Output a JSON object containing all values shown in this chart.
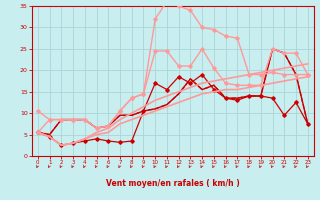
{
  "background_color": "#c8eef0",
  "grid_color": "#aad4d6",
  "xlabel": "Vent moyen/en rafales ( km/h )",
  "xlabel_color": "#cc0000",
  "tick_color": "#cc0000",
  "xlim": [
    -0.5,
    23.5
  ],
  "ylim": [
    0,
    35
  ],
  "yticks": [
    0,
    5,
    10,
    15,
    20,
    25,
    30,
    35
  ],
  "xticks": [
    0,
    1,
    2,
    3,
    4,
    5,
    6,
    7,
    8,
    9,
    10,
    11,
    12,
    13,
    14,
    15,
    16,
    17,
    18,
    19,
    20,
    21,
    22,
    23
  ],
  "series": [
    {
      "x": [
        0,
        1,
        2,
        3,
        4,
        5,
        6,
        7,
        8,
        9,
        10,
        11,
        12,
        13,
        14,
        15,
        16,
        17,
        18,
        19,
        20,
        21,
        22,
        23
      ],
      "y": [
        5.5,
        4.5,
        2.5,
        3.0,
        3.5,
        4.0,
        3.5,
        3.2,
        3.5,
        10.5,
        17.0,
        15.5,
        18.5,
        17.0,
        19.0,
        15.5,
        13.5,
        13.0,
        14.0,
        14.0,
        13.5,
        9.5,
        12.5,
        7.5
      ],
      "color": "#cc0000",
      "lw": 0.9,
      "marker": "D",
      "ms": 1.8,
      "alpha": 1.0,
      "dashed": false
    },
    {
      "x": [
        0,
        1,
        2,
        3,
        4,
        5,
        6,
        7,
        8,
        9,
        10,
        11,
        12,
        13,
        14,
        15,
        16,
        17,
        18,
        19,
        20,
        21,
        22,
        23
      ],
      "y": [
        5.5,
        5.0,
        8.5,
        8.5,
        8.5,
        6.5,
        7.0,
        9.5,
        9.5,
        10.5,
        11.0,
        12.0,
        14.5,
        18.0,
        15.5,
        16.5,
        13.5,
        13.5,
        14.0,
        14.0,
        25.0,
        24.0,
        19.0,
        7.5
      ],
      "color": "#cc0000",
      "lw": 1.0,
      "marker": null,
      "ms": 0,
      "alpha": 1.0,
      "dashed": false
    },
    {
      "x": [
        0,
        1,
        2,
        3,
        4,
        5,
        6,
        7,
        8,
        9,
        10,
        11,
        12,
        13,
        14,
        15,
        16,
        17,
        18,
        19,
        20,
        21,
        22,
        23
      ],
      "y": [
        5.5,
        5.0,
        8.5,
        8.5,
        8.5,
        6.5,
        7.0,
        9.5,
        9.5,
        10.5,
        11.0,
        12.0,
        14.5,
        18.0,
        15.5,
        16.5,
        13.5,
        13.5,
        14.0,
        14.0,
        25.0,
        24.0,
        19.0,
        7.5
      ],
      "color": "#cc0000",
      "lw": 0.9,
      "marker": null,
      "ms": 0,
      "alpha": 1.0,
      "dashed": true
    },
    {
      "x": [
        0,
        1,
        2,
        3,
        4,
        5,
        6,
        7,
        8,
        9,
        10,
        11,
        12,
        13,
        14,
        15,
        16,
        17,
        18,
        19,
        20,
        21,
        22,
        23
      ],
      "y": [
        5.5,
        8.5,
        8.5,
        8.5,
        8.5,
        6.5,
        7.0,
        10.5,
        13.5,
        14.5,
        32.0,
        36.0,
        35.0,
        34.0,
        30.0,
        29.5,
        28.0,
        27.5,
        19.0,
        19.0,
        19.5,
        19.0,
        19.0,
        19.0
      ],
      "color": "#ff9999",
      "lw": 1.0,
      "marker": "D",
      "ms": 1.8,
      "alpha": 1.0,
      "dashed": false
    },
    {
      "x": [
        0,
        1,
        2,
        3,
        4,
        5,
        6,
        7,
        8,
        9,
        10,
        11,
        12,
        13,
        14,
        15,
        16,
        17,
        18,
        19,
        20,
        21,
        22,
        23
      ],
      "y": [
        10.5,
        8.5,
        8.5,
        8.5,
        8.5,
        6.5,
        7.0,
        10.5,
        13.5,
        14.5,
        24.5,
        24.5,
        21.0,
        21.0,
        25.0,
        20.5,
        17.0,
        16.5,
        16.5,
        16.5,
        25.0,
        24.0,
        24.0,
        19.0
      ],
      "color": "#ff9999",
      "lw": 1.0,
      "marker": "D",
      "ms": 1.8,
      "alpha": 1.0,
      "dashed": false
    },
    {
      "x": [
        0,
        1,
        2,
        3,
        4,
        5,
        6,
        7,
        8,
        9,
        10,
        11,
        12,
        13,
        14,
        15,
        16,
        17,
        18,
        19,
        20,
        21,
        22,
        23
      ],
      "y": [
        5.5,
        4.5,
        2.5,
        3.0,
        4.0,
        5.0,
        5.5,
        7.5,
        8.5,
        9.5,
        10.5,
        11.5,
        12.5,
        13.5,
        14.5,
        15.0,
        15.5,
        15.5,
        16.0,
        16.5,
        17.0,
        17.5,
        18.0,
        18.5
      ],
      "color": "#ff9999",
      "lw": 1.2,
      "marker": null,
      "ms": 0,
      "alpha": 1.0,
      "dashed": false
    },
    {
      "x": [
        0,
        1,
        2,
        3,
        4,
        5,
        6,
        7,
        8,
        9,
        10,
        11,
        12,
        13,
        14,
        15,
        16,
        17,
        18,
        19,
        20,
        21,
        22,
        23
      ],
      "y": [
        5.5,
        4.5,
        2.5,
        3.0,
        4.0,
        5.5,
        6.5,
        8.5,
        10.0,
        11.5,
        13.0,
        14.0,
        15.0,
        16.0,
        17.0,
        17.5,
        18.0,
        18.5,
        19.0,
        19.5,
        20.0,
        20.5,
        21.0,
        21.5
      ],
      "color": "#ff9999",
      "lw": 1.2,
      "marker": null,
      "ms": 0,
      "alpha": 1.0,
      "dashed": false
    }
  ],
  "arrow_color": "#cc3333"
}
